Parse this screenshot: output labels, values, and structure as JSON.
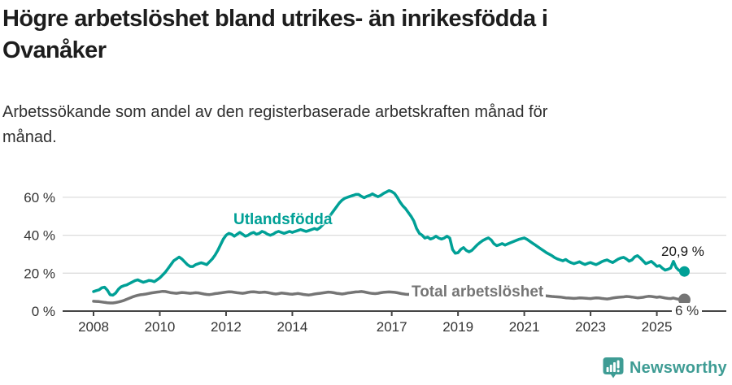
{
  "header": {
    "title_lines": [
      "Högre arbetslöshet bland utrikes- än inrikesfödda i",
      "Ovanåker"
    ],
    "subtitle_lines": [
      "Arbetssökande som andel av den registerbaserade arbetskraften månad för",
      "månad."
    ]
  },
  "footer": {
    "brand": "Newsworthy",
    "logo_icon": "speech-bubble-with-bar-chart-and-exclamation",
    "brand_color": "#3E9C94"
  },
  "colors": {
    "accent_teal": "#00A096",
    "series_gray": "#757575",
    "grid": "#DCDCDC",
    "axis": "#454545",
    "text_dark": "#1D1D1D",
    "text_body": "#303030",
    "tick_text": "#333333"
  },
  "chart_data": {
    "type": "line",
    "title": "Högre arbetslöshet bland utrikes- än inrikesfödda i Ovanåker",
    "subtitle": "Arbetssökande som andel av den registerbaserade arbetskraften månad för månad.",
    "unit": "%",
    "frequency": "monthly",
    "x_start": "2008-01",
    "x_end": "2025-11",
    "ylim": [
      0,
      66
    ],
    "grid": "horizontal",
    "legend_position": "inline-labels",
    "yticks": [
      {
        "value": 0,
        "label": "0 %"
      },
      {
        "value": 20,
        "label": "20 %"
      },
      {
        "value": 40,
        "label": "40 %"
      },
      {
        "value": 60,
        "label": "60 %"
      }
    ],
    "xticks": [
      {
        "year": 2008,
        "label": "2008"
      },
      {
        "year": 2010,
        "label": "2010"
      },
      {
        "year": 2012,
        "label": "2012"
      },
      {
        "year": 2014,
        "label": "2014"
      },
      {
        "year": 2017,
        "label": "2017"
      },
      {
        "year": 2019,
        "label": "2019"
      },
      {
        "year": 2021,
        "label": "2021"
      },
      {
        "year": 2023,
        "label": "2023"
      },
      {
        "year": 2025,
        "label": "2025"
      }
    ],
    "series": [
      {
        "name": "Utlandsfödda",
        "color": "#00A096",
        "end_label": "20,9 %",
        "end_value": 20.9,
        "values": [
          10.3,
          10.8,
          11.2,
          12.3,
          12.6,
          11.0,
          8.6,
          8.4,
          9.5,
          11.5,
          12.8,
          13.4,
          13.8,
          14.5,
          15.3,
          16.0,
          16.5,
          15.8,
          15.2,
          15.6,
          16.2,
          16.0,
          15.5,
          16.5,
          17.5,
          19.0,
          20.5,
          22.5,
          24.5,
          26.5,
          27.5,
          28.5,
          27.5,
          26.0,
          24.5,
          23.5,
          23.5,
          24.5,
          25.0,
          25.5,
          25.0,
          24.5,
          26.0,
          27.5,
          29.5,
          32.0,
          35.0,
          38.0,
          40.0,
          41.0,
          40.5,
          39.5,
          40.5,
          41.5,
          40.5,
          39.5,
          40.0,
          41.0,
          41.5,
          40.5,
          41.0,
          42.0,
          41.5,
          40.5,
          40.0,
          40.5,
          41.5,
          42.0,
          41.5,
          41.0,
          41.5,
          42.0,
          41.5,
          42.0,
          42.5,
          43.0,
          42.5,
          42.0,
          42.5,
          43.0,
          43.5,
          43.0,
          44.0,
          45.5,
          47.0,
          49.0,
          51.0,
          53.0,
          55.0,
          57.0,
          58.5,
          59.5,
          60.0,
          60.5,
          61.0,
          61.5,
          61.5,
          60.5,
          59.8,
          60.5,
          61.0,
          61.8,
          61.0,
          60.3,
          61.0,
          62.0,
          62.8,
          63.5,
          63.0,
          62.0,
          60.0,
          57.5,
          55.5,
          54.0,
          52.0,
          50.0,
          47.5,
          43.5,
          41.0,
          40.0,
          38.5,
          39.0,
          38.0,
          38.5,
          39.5,
          38.5,
          38.0,
          38.5,
          39.5,
          38.5,
          32.5,
          30.5,
          30.8,
          32.5,
          33.5,
          32.0,
          31.2,
          32.0,
          33.5,
          35.0,
          36.2,
          37.2,
          38.0,
          38.6,
          37.5,
          35.5,
          34.5,
          35.0,
          35.6,
          34.8,
          35.4,
          36.0,
          36.6,
          37.2,
          37.8,
          38.2,
          38.6,
          37.8,
          36.8,
          35.8,
          34.8,
          33.8,
          32.8,
          31.8,
          30.8,
          30.0,
          29.2,
          28.2,
          27.5,
          27.0,
          26.5,
          27.2,
          26.2,
          25.5,
          25.0,
          25.5,
          26.0,
          25.2,
          24.6,
          25.2,
          25.6,
          25.0,
          24.5,
          25.2,
          26.0,
          26.6,
          27.0,
          26.2,
          25.6,
          26.5,
          27.4,
          28.0,
          28.3,
          27.5,
          26.3,
          27.0,
          28.6,
          29.2,
          28.0,
          26.5,
          25.0,
          25.6,
          26.2,
          25.0,
          23.6,
          24.0,
          22.6,
          21.6,
          22.0,
          22.7,
          26.2,
          23.0,
          21.4,
          21.8,
          20.9
        ]
      },
      {
        "name": "Total arbetslöshet",
        "color": "#757575",
        "end_label": "6 %",
        "end_value": 6,
        "values": [
          5.2,
          5.1,
          5.0,
          4.8,
          4.6,
          4.4,
          4.3,
          4.3,
          4.5,
          4.8,
          5.2,
          5.6,
          6.2,
          6.8,
          7.4,
          7.9,
          8.3,
          8.6,
          8.8,
          9.0,
          9.3,
          9.6,
          9.8,
          10.0,
          10.2,
          10.4,
          10.3,
          10.0,
          9.7,
          9.5,
          9.4,
          9.6,
          9.8,
          9.7,
          9.5,
          9.4,
          9.5,
          9.7,
          9.6,
          9.3,
          9.0,
          8.8,
          8.7,
          8.9,
          9.2,
          9.4,
          9.6,
          9.8,
          10.0,
          10.2,
          10.1,
          9.9,
          9.7,
          9.5,
          9.4,
          9.6,
          9.9,
          10.1,
          10.2,
          10.0,
          9.8,
          9.9,
          10.0,
          9.8,
          9.5,
          9.2,
          9.0,
          9.2,
          9.5,
          9.4,
          9.2,
          9.0,
          8.9,
          9.1,
          9.3,
          9.1,
          8.8,
          8.6,
          8.5,
          8.7,
          9.0,
          9.2,
          9.4,
          9.6,
          9.8,
          10.0,
          9.9,
          9.7,
          9.4,
          9.2,
          9.0,
          9.2,
          9.5,
          9.7,
          9.9,
          10.1,
          10.2,
          10.3,
          10.1,
          9.8,
          9.5,
          9.3,
          9.2,
          9.4,
          9.7,
          9.9,
          10.0,
          10.1,
          10.0,
          9.9,
          9.7,
          9.4,
          9.1,
          8.9,
          8.8,
          9.0,
          9.3,
          9.2,
          9.0,
          8.8,
          8.6,
          8.7,
          8.8,
          8.6,
          8.3,
          8.0,
          7.9,
          8.1,
          8.4,
          8.3,
          8.1,
          7.9,
          7.8,
          8.0,
          8.2,
          8.0,
          7.8,
          7.6,
          7.7,
          7.9,
          8.2,
          8.4,
          8.5,
          8.6,
          8.8,
          9.2,
          9.6,
          10.0,
          10.2,
          10.1,
          9.9,
          9.8,
          9.6,
          9.4,
          9.3,
          9.4,
          9.5,
          9.6,
          9.4,
          9.1,
          8.8,
          8.6,
          8.4,
          8.2,
          8.0,
          7.9,
          7.7,
          7.6,
          7.5,
          7.4,
          7.2,
          7.0,
          6.9,
          6.8,
          6.7,
          6.8,
          7.0,
          6.9,
          6.8,
          6.7,
          6.6,
          6.8,
          7.0,
          6.9,
          6.7,
          6.5,
          6.4,
          6.6,
          6.9,
          7.1,
          7.3,
          7.4,
          7.5,
          7.7,
          7.6,
          7.4,
          7.2,
          7.0,
          7.1,
          7.3,
          7.6,
          7.8,
          7.7,
          7.5,
          7.3,
          7.5,
          7.2,
          6.9,
          6.7,
          6.6,
          6.9,
          6.5,
          6.2,
          6.1,
          6.0
        ]
      }
    ]
  }
}
